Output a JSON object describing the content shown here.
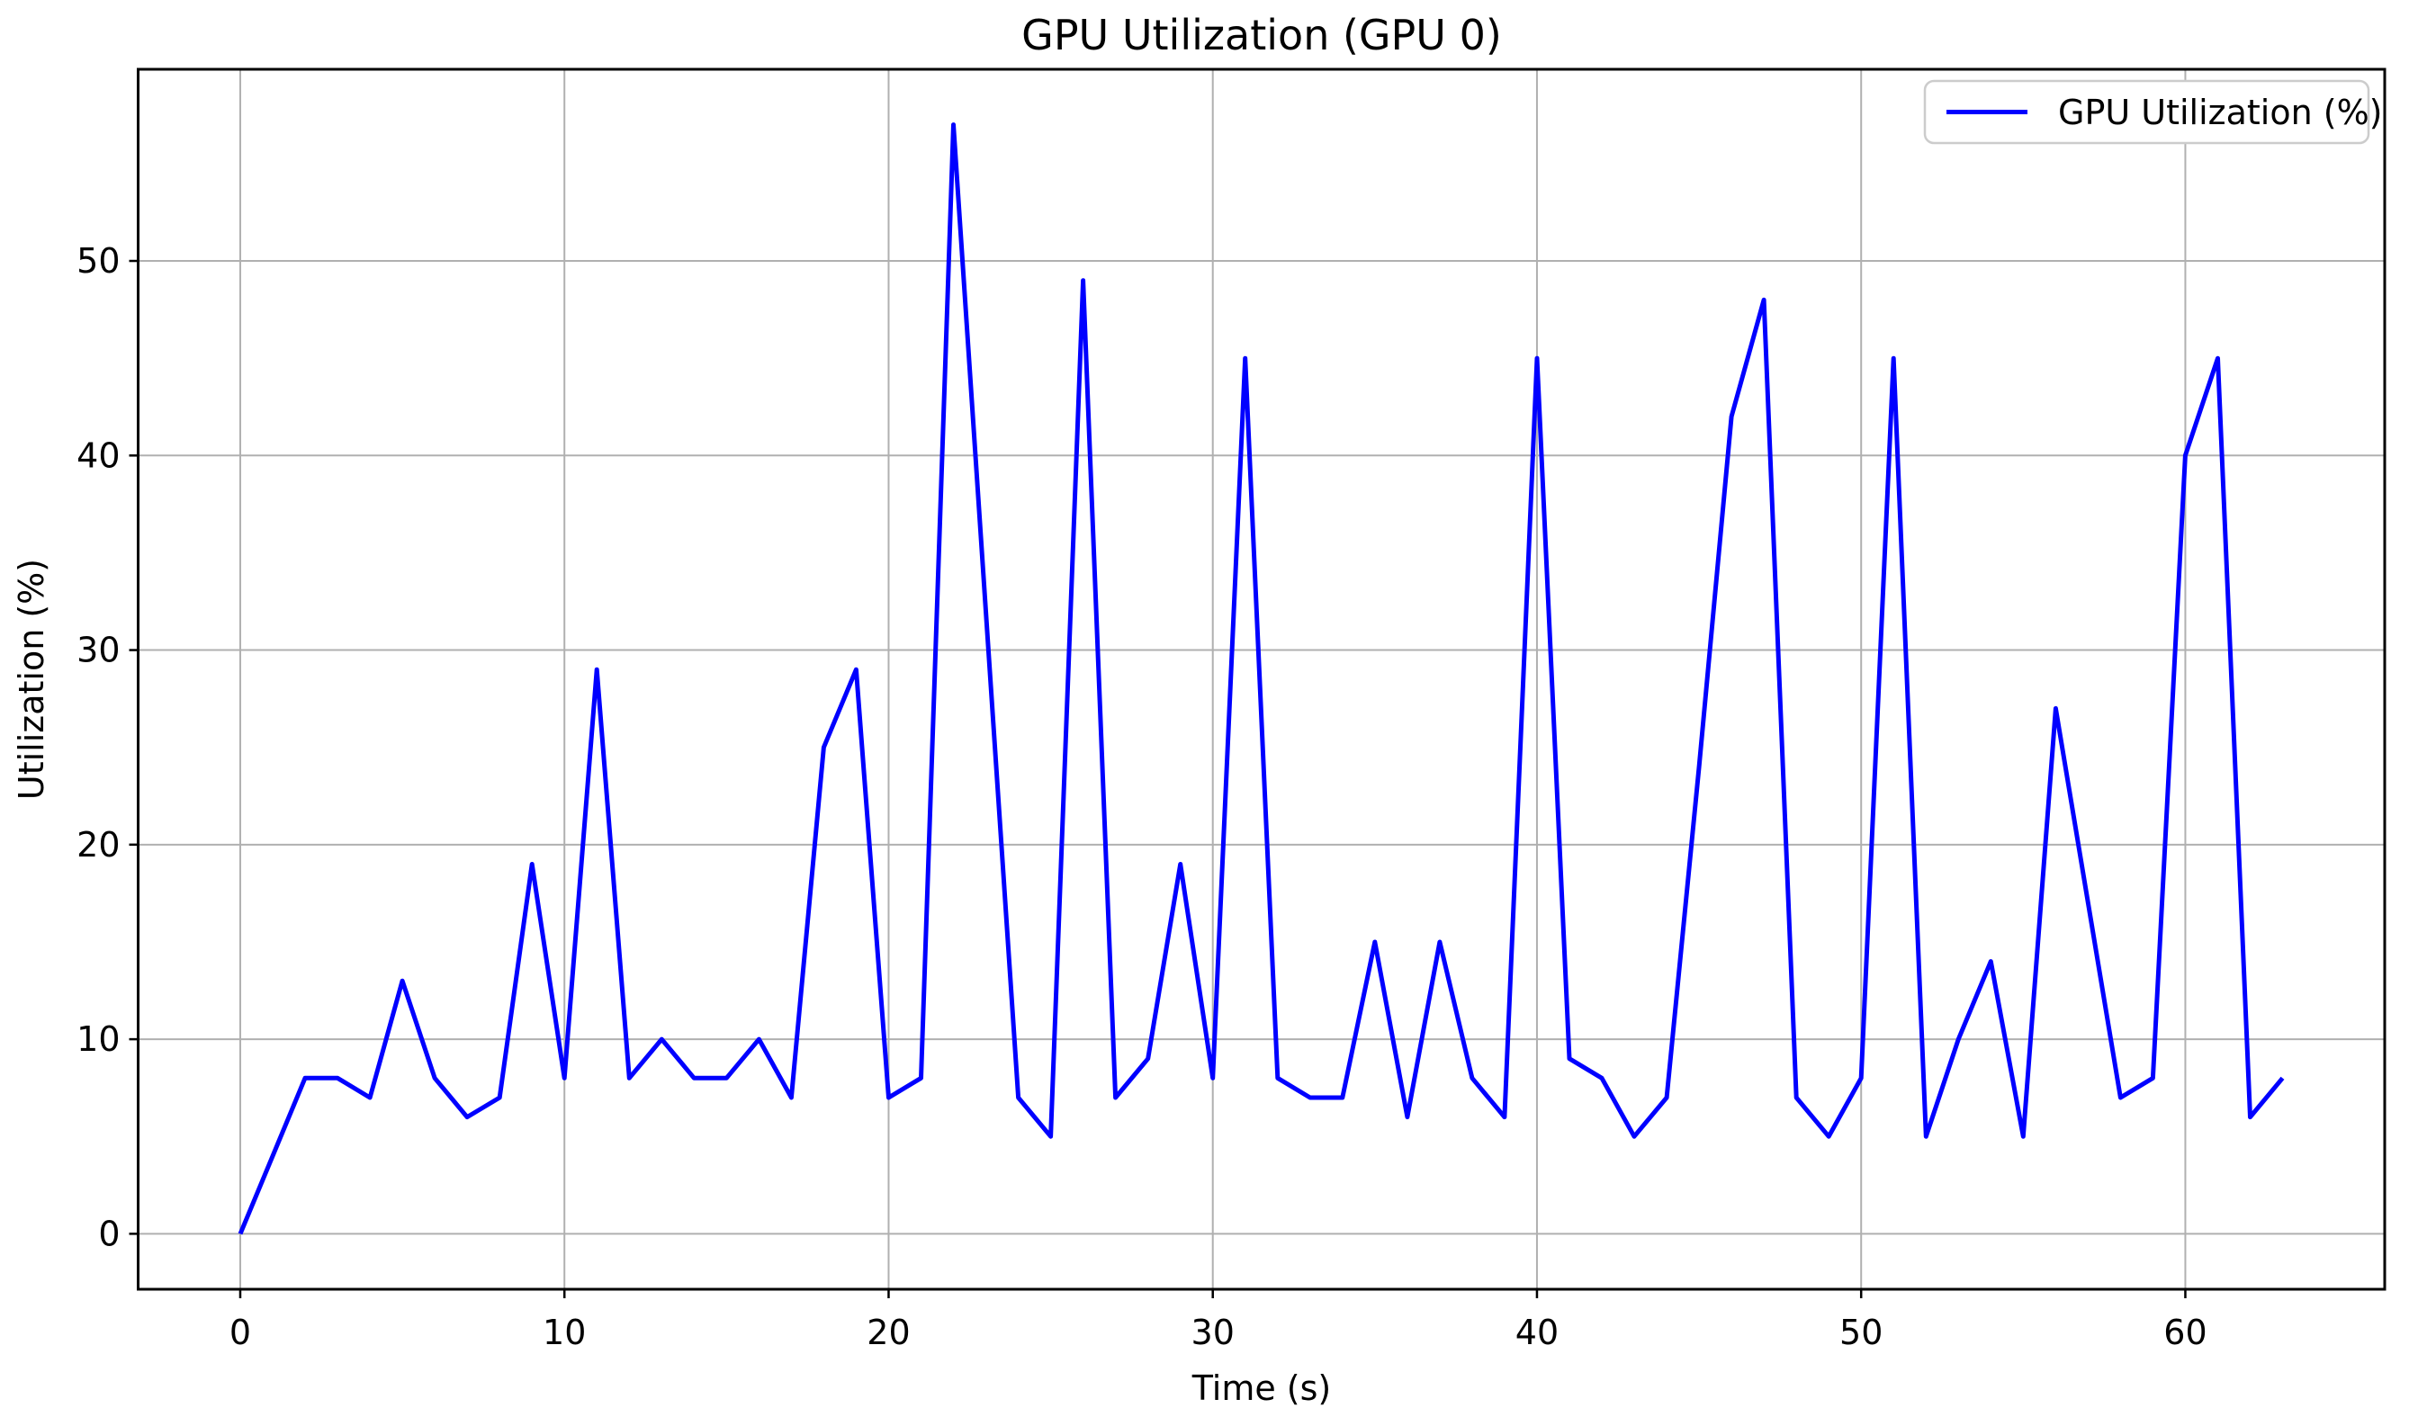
{
  "page": {
    "title": "GPU Utilization (GPU 0)"
  },
  "chart_data": {
    "type": "line",
    "title": "GPU Utilization (GPU 0)",
    "xlabel": "Time (s)",
    "ylabel": "Utilization (%)",
    "grid": true,
    "legend": {
      "position": "upper-right",
      "entries": [
        {
          "label": "GPU Utilization (%)",
          "color": "#0000ff"
        }
      ]
    },
    "x": [
      0,
      1,
      2,
      3,
      4,
      5,
      6,
      7,
      8,
      9,
      10,
      11,
      12,
      13,
      14,
      15,
      16,
      17,
      18,
      19,
      20,
      21,
      22,
      23,
      24,
      25,
      26,
      27,
      28,
      29,
      30,
      31,
      32,
      33,
      34,
      35,
      36,
      37,
      38,
      39,
      40,
      41,
      42,
      43,
      44,
      45,
      46,
      47,
      48,
      49,
      50,
      51,
      52,
      53,
      54,
      55,
      56,
      57,
      58,
      59,
      60,
      61,
      62,
      63
    ],
    "series": [
      {
        "name": "GPU Utilization (%)",
        "color": "#0000ff",
        "values": [
          0,
          4,
          8,
          8,
          7,
          13,
          8,
          6,
          7,
          19,
          8,
          29,
          8,
          10,
          8,
          8,
          10,
          7,
          25,
          29,
          7,
          8,
          57,
          32,
          7,
          5,
          49,
          7,
          9,
          19,
          8,
          45,
          8,
          7,
          7,
          15,
          6,
          15,
          8,
          6,
          45,
          9,
          8,
          5,
          7,
          24,
          42,
          48,
          7,
          5,
          8,
          45,
          5,
          10,
          14,
          5,
          27,
          17,
          7,
          8,
          40,
          45,
          6,
          8
        ]
      }
    ],
    "xticks": [
      0,
      10,
      20,
      30,
      40,
      50,
      60
    ],
    "yticks": [
      0,
      10,
      20,
      30,
      40,
      50
    ],
    "xlim": [
      -3.15,
      66.15
    ],
    "ylim": [
      -2.85,
      59.85
    ],
    "colors": {
      "line": "#0000ff",
      "grid": "#b0b0b0",
      "spine": "#000000",
      "background": "#ffffff",
      "legend_border": "#cccccc"
    }
  }
}
